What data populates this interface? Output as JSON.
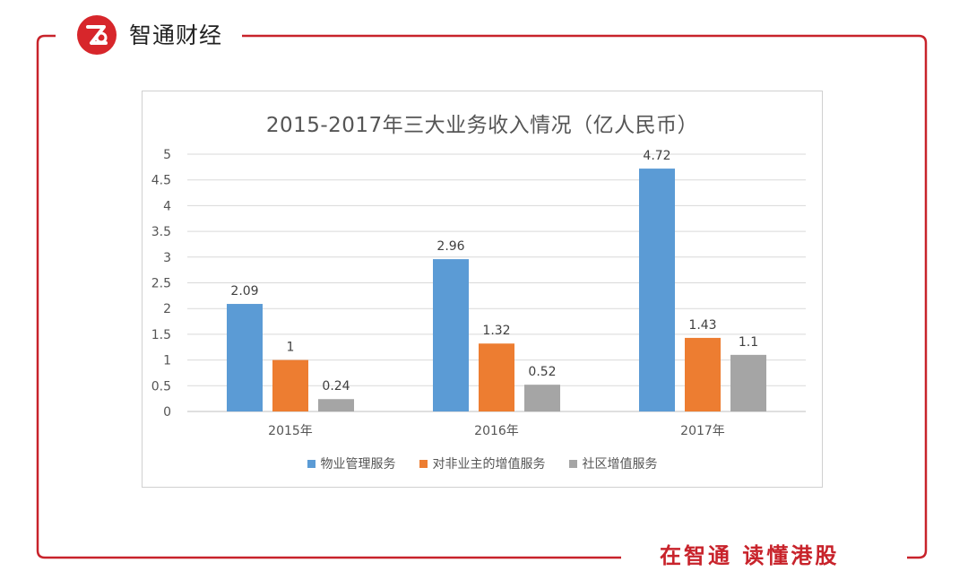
{
  "brand": {
    "name": "智通财经",
    "slogan": "在智通 读懂港股",
    "color": "#c8232b"
  },
  "chart_data": {
    "type": "bar",
    "title": "2015-2017年三大业务收入情况（亿人民币）",
    "categories": [
      "2015年",
      "2016年",
      "2017年"
    ],
    "series": [
      {
        "name": "物业管理服务",
        "values": [
          2.09,
          2.96,
          4.72
        ],
        "color": "#5b9bd5"
      },
      {
        "name": "对非业主的增值服务",
        "values": [
          1,
          1.32,
          1.43
        ],
        "color": "#ed7d31"
      },
      {
        "name": "社区增值服务",
        "values": [
          0.24,
          0.52,
          1.1
        ],
        "color": "#a5a5a5"
      }
    ],
    "data_labels": [
      [
        "2.09",
        "2.96",
        "4.72"
      ],
      [
        "1",
        "1.32",
        "1.43"
      ],
      [
        "0.24",
        "0.52",
        "1.1"
      ]
    ],
    "yticks": [
      "0",
      "0.5",
      "1",
      "1.5",
      "2",
      "2.5",
      "3",
      "3.5",
      "4",
      "4.5",
      "5"
    ],
    "ylim": [
      0,
      5
    ],
    "grid": true,
    "legend_position": "bottom"
  }
}
